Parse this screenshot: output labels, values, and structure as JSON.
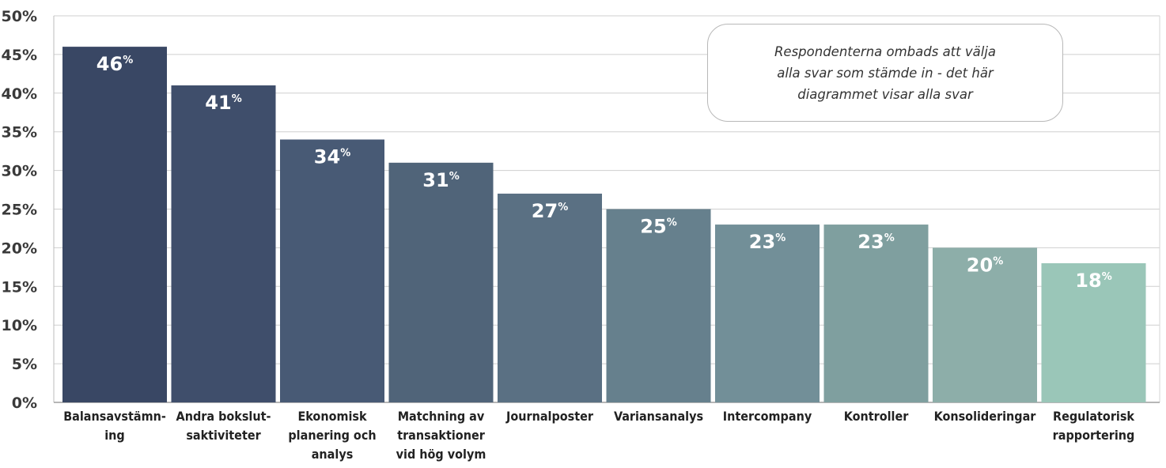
{
  "chart_data": {
    "type": "bar",
    "categories": [
      [
        "Balansavstämn-",
        "ing"
      ],
      [
        "Andra bokslut-",
        "saktiviteter"
      ],
      [
        "Ekonomisk",
        "planering och",
        "analys"
      ],
      [
        "Matchning av",
        "transaktioner",
        "vid hög volym"
      ],
      [
        "Journalposter"
      ],
      [
        "Variansanalys"
      ],
      [
        "Intercompany"
      ],
      [
        "Kontroller"
      ],
      [
        "Konsolideringar"
      ],
      [
        "Regulatorisk",
        "rapportering"
      ]
    ],
    "values": [
      46,
      41,
      34,
      31,
      27,
      25,
      23,
      23,
      20,
      18
    ],
    "data_labels": [
      "46",
      "41",
      "34",
      "31",
      "27",
      "25",
      "23",
      "23",
      "20",
      "18"
    ],
    "data_label_suffix": "%",
    "bar_colors": [
      "#394764",
      "#3f4e6b",
      "#485a75",
      "#506479",
      "#5a7083",
      "#66808d",
      "#728f98",
      "#7f9f9f",
      "#8daea9",
      "#9ac6b8"
    ],
    "yticks": [
      "0%",
      "5%",
      "10%",
      "15%",
      "20%",
      "25%",
      "30%",
      "35%",
      "40%",
      "45%",
      "50%"
    ],
    "ylim": [
      0,
      50
    ],
    "grid": true,
    "title": "",
    "xlabel": "",
    "ylabel": ""
  },
  "annotation": {
    "lines": [
      "Respondenterna ombads att välja",
      "alla svar som stämde in - det här",
      "diagrammet visar alla svar"
    ]
  }
}
